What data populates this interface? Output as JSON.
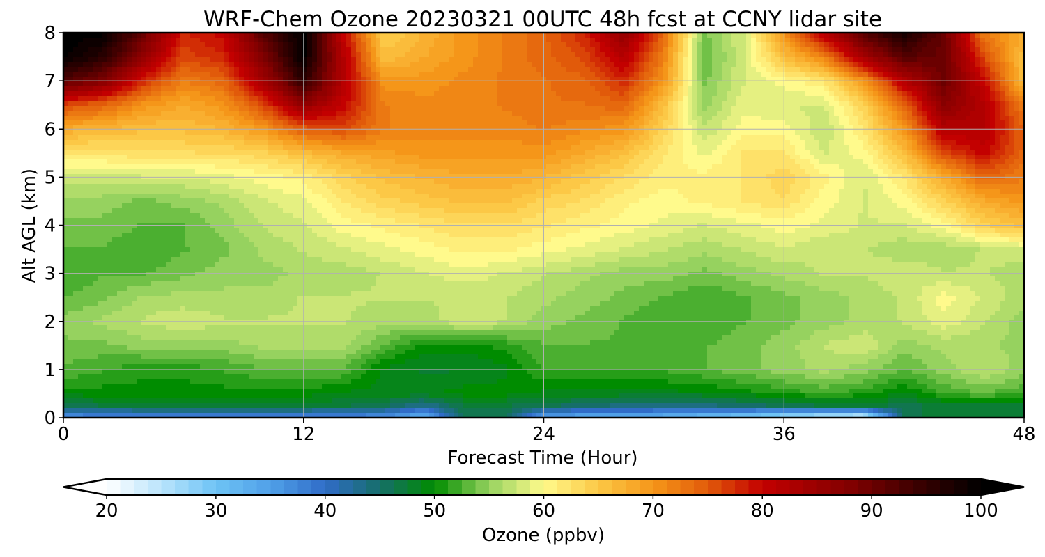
{
  "chart_data": {
    "type": "heatmap",
    "title": "WRF-Chem Ozone  20230321 00UTC 48h fcst at CCNY lidar site",
    "xlabel": "Forecast Time (Hour)",
    "ylabel": "Alt AGL (km)",
    "xlim": [
      0,
      48
    ],
    "ylim": [
      0,
      8
    ],
    "xticks": [
      "0",
      "12",
      "24",
      "36",
      "48"
    ],
    "yticks": [
      "0",
      "1",
      "2",
      "3",
      "4",
      "5",
      "6",
      "7",
      "8"
    ],
    "grid": true,
    "colorbar": {
      "label": "Ozone  (ppbv)",
      "range": [
        20,
        100
      ],
      "ticks": [
        "20",
        "30",
        "40",
        "50",
        "60",
        "70",
        "80",
        "90",
        "100"
      ],
      "extend": "both",
      "under_color": "#ffffff",
      "over_color": "#000000"
    },
    "x": [
      0,
      2,
      4,
      6,
      8,
      10,
      12,
      14,
      16,
      18,
      20,
      22,
      24,
      26,
      28,
      30,
      32,
      34,
      36,
      38,
      40,
      42,
      44,
      46,
      48
    ],
    "y": [
      0,
      0.25,
      0.5,
      1,
      1.5,
      2,
      2.5,
      3,
      3.5,
      4,
      4.5,
      5,
      5.5,
      6,
      6.5,
      7,
      7.5,
      8
    ],
    "z": [
      [
        36,
        36,
        36,
        36,
        36,
        36,
        36,
        36,
        36,
        32,
        46,
        46,
        34,
        33,
        33,
        32,
        30,
        28,
        25,
        23,
        21,
        46,
        48,
        48,
        48
      ],
      [
        46,
        47,
        48,
        48,
        48,
        48,
        48,
        47,
        46,
        43,
        47,
        47,
        46,
        45,
        44,
        44,
        44,
        45,
        46,
        47,
        48,
        46,
        48,
        48,
        48
      ],
      [
        50,
        50,
        50,
        50,
        50,
        50,
        50,
        49,
        49,
        49,
        50,
        50,
        49,
        49,
        49,
        49,
        49,
        50,
        51,
        52,
        51,
        49,
        52,
        53,
        52
      ],
      [
        53,
        52,
        51,
        51,
        52,
        53,
        53,
        53,
        49,
        48,
        48,
        49,
        52,
        52,
        52,
        52,
        53,
        54,
        55,
        56,
        55,
        53,
        55,
        57,
        55
      ],
      [
        54,
        54,
        55,
        55,
        55,
        56,
        56,
        56,
        53,
        50,
        50,
        51,
        53,
        53,
        53,
        53,
        53,
        54,
        55,
        57,
        58,
        55,
        56,
        56,
        55
      ],
      [
        55,
        56,
        57,
        58,
        57,
        57,
        57,
        57,
        56,
        56,
        58,
        57,
        55,
        54,
        53,
        52,
        52,
        53,
        54,
        55,
        56,
        57,
        59,
        57,
        55
      ],
      [
        53,
        54,
        56,
        56,
        56,
        56,
        57,
        57,
        57,
        57,
        57,
        57,
        56,
        55,
        54,
        53,
        52,
        53,
        54,
        55,
        56,
        57,
        60,
        58,
        56
      ],
      [
        52,
        53,
        53,
        54,
        55,
        55,
        56,
        56,
        57,
        58,
        59,
        58,
        57,
        56,
        55,
        55,
        54,
        55,
        56,
        57,
        57,
        58,
        57,
        57,
        56
      ],
      [
        53,
        53,
        52,
        53,
        54,
        56,
        57,
        58,
        59,
        60,
        61,
        61,
        60,
        59,
        58,
        57,
        56,
        57,
        58,
        57,
        57,
        56,
        56,
        57,
        58
      ],
      [
        54,
        54,
        53,
        53,
        55,
        57,
        58,
        60,
        61,
        62,
        63,
        63,
        62,
        61,
        60,
        59,
        58,
        59,
        60,
        59,
        58,
        58,
        60,
        64,
        66
      ],
      [
        55,
        55,
        54,
        55,
        56,
        58,
        59,
        62,
        64,
        65,
        66,
        66,
        64,
        63,
        61,
        60,
        61,
        62,
        63,
        60,
        58,
        60,
        64,
        68,
        70
      ],
      [
        58,
        58,
        58,
        58,
        59,
        60,
        61,
        64,
        66,
        67,
        68,
        68,
        67,
        65,
        63,
        61,
        61,
        62,
        64,
        61,
        58,
        62,
        68,
        74,
        72
      ],
      [
        62,
        62,
        63,
        63,
        63,
        64,
        66,
        68,
        69,
        70,
        70,
        70,
        70,
        68,
        66,
        62,
        59,
        62,
        62,
        58,
        60,
        66,
        76,
        80,
        74
      ],
      [
        68,
        67,
        66,
        66,
        67,
        70,
        75,
        76,
        72,
        71,
        71,
        71,
        72,
        71,
        70,
        64,
        57,
        60,
        60,
        57,
        62,
        70,
        82,
        82,
        74
      ],
      [
        76,
        74,
        70,
        68,
        70,
        76,
        86,
        80,
        72,
        71,
        71,
        72,
        73,
        73,
        74,
        66,
        55,
        59,
        58,
        58,
        64,
        74,
        87,
        82,
        72
      ],
      [
        92,
        88,
        78,
        72,
        74,
        84,
        96,
        82,
        70,
        70,
        71,
        72,
        73,
        74,
        78,
        70,
        54,
        58,
        60,
        62,
        70,
        82,
        90,
        80,
        66
      ],
      [
        100,
        96,
        86,
        76,
        78,
        88,
        100,
        82,
        66,
        68,
        70,
        72,
        74,
        76,
        82,
        72,
        53,
        58,
        66,
        72,
        84,
        92,
        90,
        76,
        66
      ],
      [
        100,
        100,
        90,
        78,
        80,
        92,
        100,
        80,
        64,
        67,
        70,
        72,
        74,
        78,
        86,
        74,
        54,
        58,
        70,
        82,
        92,
        98,
        90,
        72,
        68
      ]
    ]
  }
}
